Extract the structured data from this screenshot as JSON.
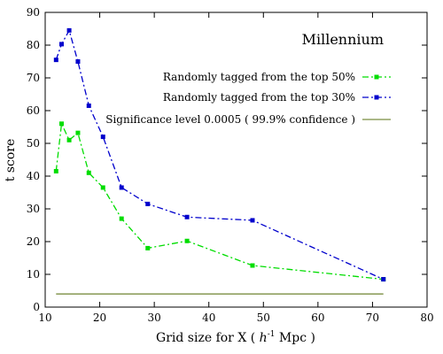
{
  "chart_data": {
    "type": "line",
    "title": "Millennium",
    "xlabel": "Grid size for X ( h⁻¹ Mpc )",
    "xlabel_parts": {
      "pre": "Grid size for X ( ",
      "h": "h",
      "sup": "-1",
      "post": " Mpc )"
    },
    "ylabel": "t score",
    "xlim": [
      10,
      80
    ],
    "ylim": [
      0,
      90
    ],
    "xticks": [
      "10",
      "20",
      "30",
      "40",
      "50",
      "60",
      "70",
      "80"
    ],
    "yticks": [
      "0",
      "10",
      "20",
      "30",
      "40",
      "50",
      "60",
      "70",
      "80",
      "90"
    ],
    "grid": false,
    "legend_position": "top-right",
    "series": [
      {
        "name": "Randomly tagged from the top 50%",
        "color": "#00dd00",
        "marker": "square",
        "line_style": "dash-dot",
        "x": [
          12,
          13,
          14.4,
          16,
          18,
          20.6,
          24,
          28.8,
          36,
          48,
          72
        ],
        "y": [
          41.5,
          56,
          51,
          53.2,
          41,
          36.5,
          27,
          18,
          20.2,
          12.7,
          8.5
        ]
      },
      {
        "name": "Randomly tagged from the top 30%",
        "color": "#0000cc",
        "marker": "square",
        "line_style": "dash-dot",
        "x": [
          12,
          13,
          14.4,
          16,
          18,
          20.6,
          24,
          28.8,
          36,
          48,
          72
        ],
        "y": [
          75.5,
          80.3,
          84.5,
          75,
          61.5,
          52,
          36.5,
          31.5,
          27.5,
          26.5,
          8.5
        ]
      },
      {
        "name": "Significance level 0.0005 ( 99.9% confidence )",
        "color": "#8fa060",
        "marker": "none",
        "line_style": "solid",
        "x": [
          12,
          72
        ],
        "y": [
          4,
          4
        ]
      }
    ]
  }
}
